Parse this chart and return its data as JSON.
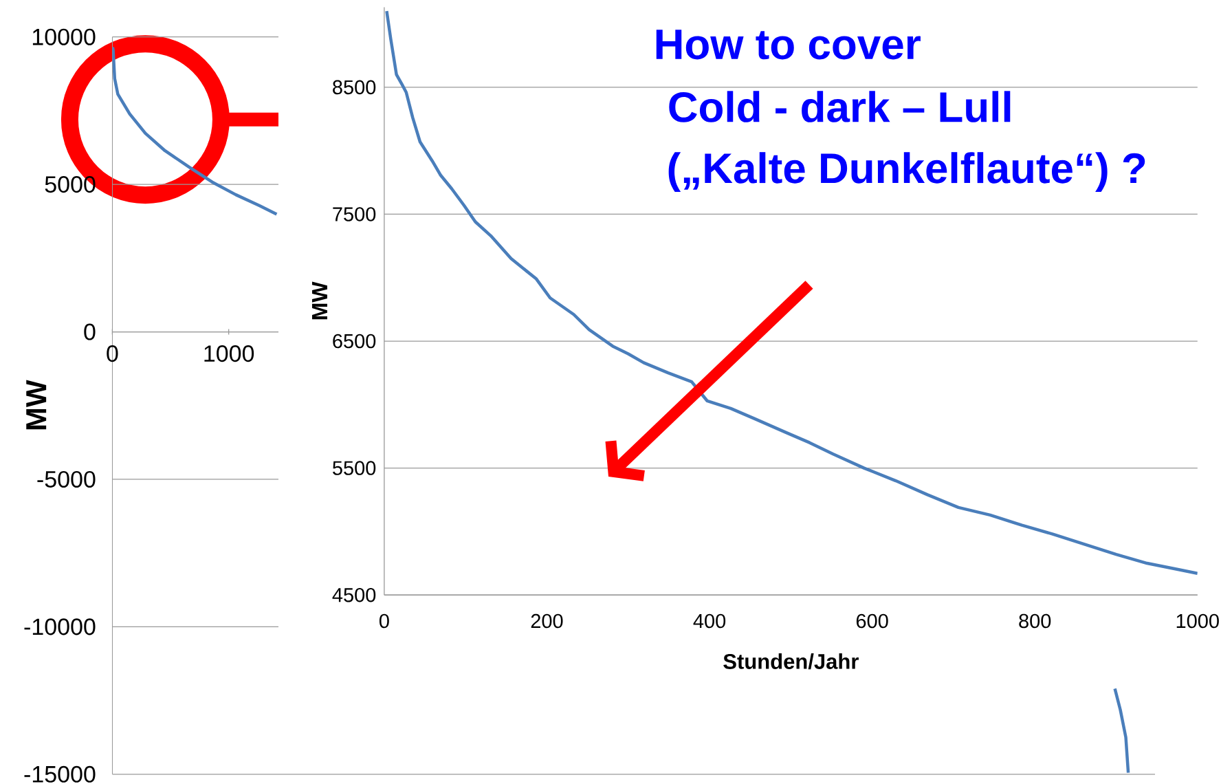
{
  "chart_data": [
    {
      "type": "line",
      "color": "#4a7ebb",
      "ylabel": "MW",
      "grid": "y",
      "x": [
        2,
        7,
        20,
        47,
        149,
        284,
        453,
        655,
        858,
        1061,
        1264,
        1412,
        5000,
        8615,
        8662,
        8709,
        8730
      ],
      "values": [
        9650,
        9550,
        8590,
        8060,
        7390,
        6730,
        6140,
        5600,
        5080,
        4650,
        4280,
        3990,
        null,
        -12100,
        -12820,
        -13750,
        -14950
      ],
      "xlim": [
        0,
        8960
      ],
      "ylim": [
        -15000,
        10000
      ],
      "xticks": [
        0,
        1000
      ],
      "yticks": [
        -15000,
        -10000,
        -5000,
        0,
        5000,
        10000
      ]
    },
    {
      "type": "line",
      "color": "#4a7ebb",
      "ylabel": "MW",
      "xlabel": "Stunden/Jahr",
      "grid": "y",
      "annotations": [
        "How to cover",
        "Cold - dark – Lull",
        "(„Kalte Dunkelflaute“) ?"
      ],
      "x": [
        3,
        8,
        15,
        22,
        27,
        35,
        44,
        59,
        69,
        83,
        98,
        112,
        131,
        156,
        187,
        204,
        233,
        252,
        281,
        300,
        319,
        349,
        378,
        397,
        426,
        455,
        494,
        523,
        552,
        590,
        629,
        668,
        706,
        745,
        784,
        822,
        861,
        900,
        938,
        977,
        1000
      ],
      "values": [
        9100,
        8880,
        8600,
        8520,
        8460,
        8260,
        8070,
        7920,
        7810,
        7700,
        7570,
        7440,
        7330,
        7150,
        6990,
        6840,
        6710,
        6590,
        6460,
        6400,
        6330,
        6250,
        6180,
        6030,
        5970,
        5890,
        5780,
        5700,
        5610,
        5500,
        5400,
        5290,
        5190,
        5130,
        5050,
        4980,
        4900,
        4820,
        4750,
        4700,
        4670
      ],
      "xlim": [
        0,
        1000
      ],
      "ylim": [
        4500,
        9130
      ],
      "xticks": [
        0,
        200,
        400,
        600,
        800,
        1000
      ],
      "yticks": [
        4500,
        5500,
        6500,
        7500,
        8500
      ]
    }
  ]
}
